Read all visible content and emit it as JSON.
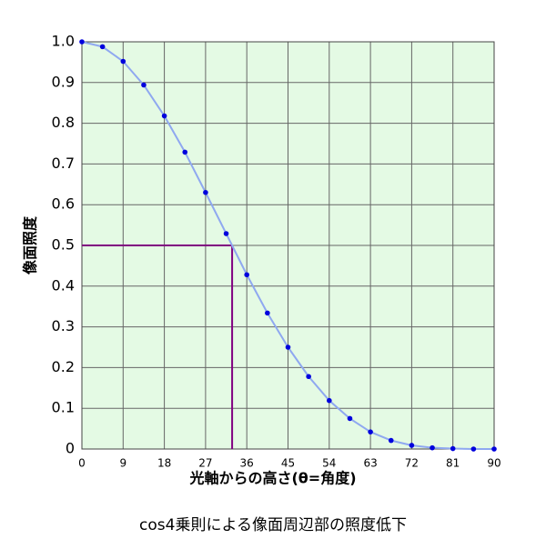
{
  "chart_data": {
    "type": "line",
    "title": "cos4乗則による像面周辺部の照度低下",
    "x_label": "光軸からの高さ(θ=角度)",
    "y_label": "像面照度",
    "x": [
      0,
      4.5,
      9,
      13.5,
      18,
      22.5,
      27,
      31.5,
      36,
      40.5,
      45,
      49.5,
      54,
      58.5,
      63,
      67.5,
      72,
      76.5,
      81,
      85.5,
      90
    ],
    "series": [
      {
        "line_color": "#8fa8f0",
        "color": "#0000dd",
        "values": [
          1,
          0.988,
          0.952,
          0.894,
          0.818,
          0.729,
          0.63,
          0.529,
          0.428,
          0.334,
          0.25,
          0.178,
          0.119,
          0.075,
          0.042,
          0.021,
          0.009,
          0.003,
          0.001,
          0,
          0
        ]
      }
    ],
    "reference": {
      "x": 32.8,
      "y": 0.5,
      "color": "#800080"
    },
    "xlim": [
      0,
      90
    ],
    "ylim": [
      0,
      1
    ],
    "xticks": [
      0,
      9,
      18,
      27,
      36,
      45,
      54,
      63,
      72,
      81,
      90
    ],
    "yticks": [
      0,
      0.1,
      0.2,
      0.3,
      0.4,
      0.5,
      0.6,
      0.7,
      0.8,
      0.9,
      {
        "value": 1,
        "label": "1.0"
      }
    ],
    "grid": true,
    "background": "#e4fae4"
  }
}
